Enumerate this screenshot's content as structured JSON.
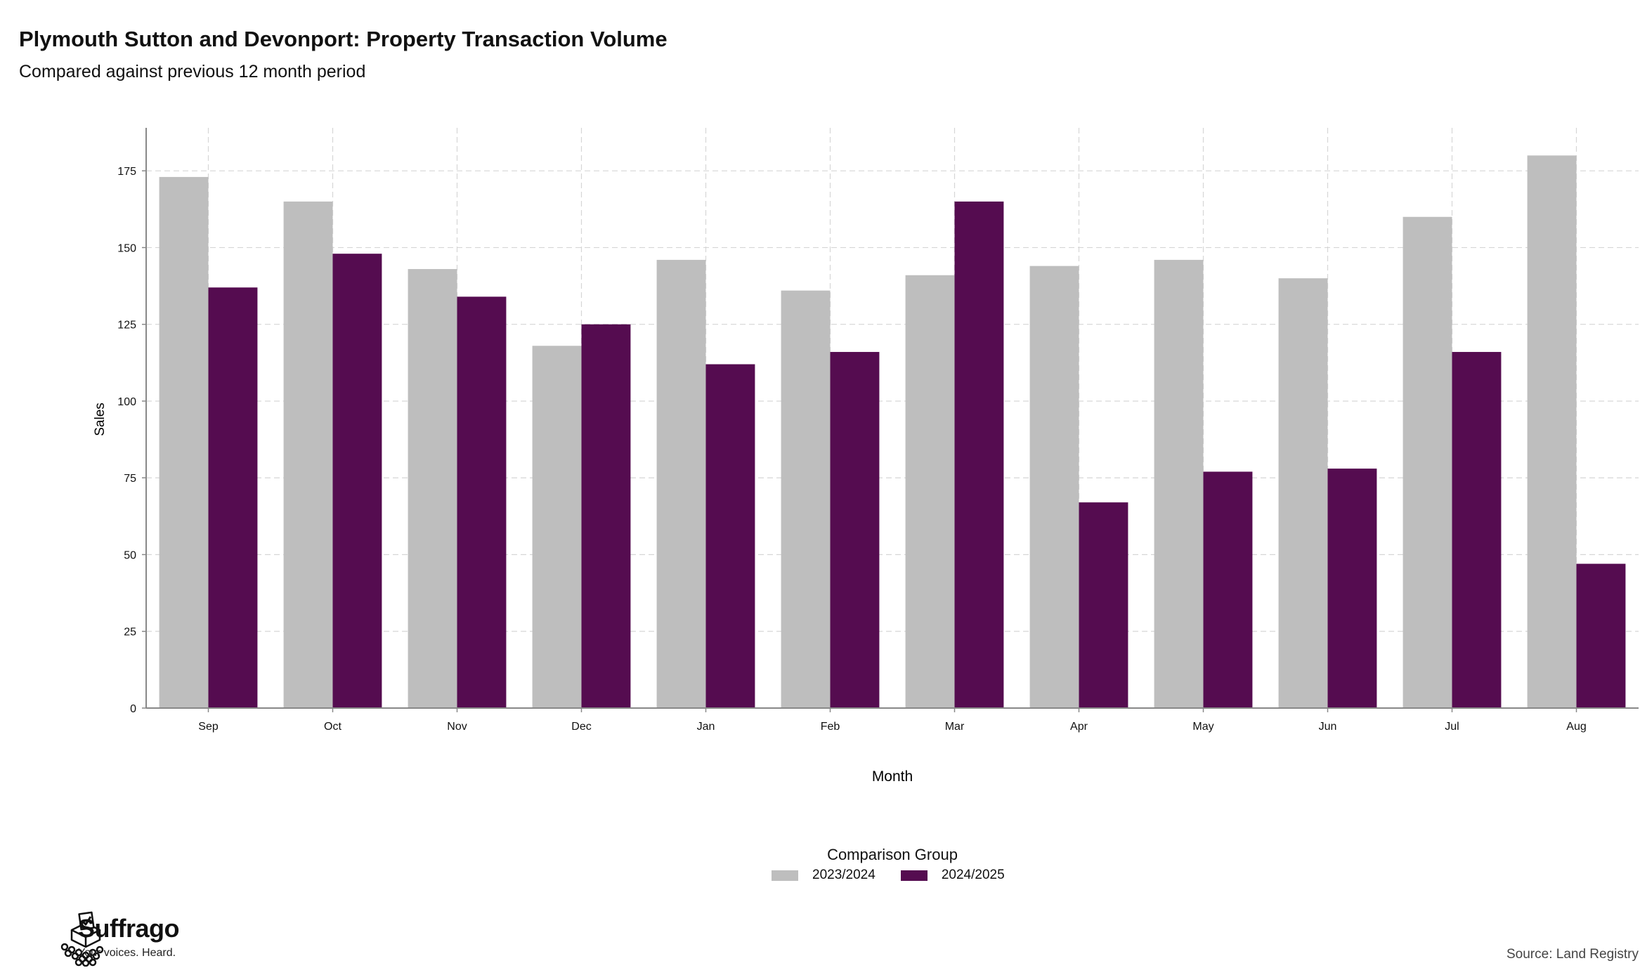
{
  "header": {
    "title": "Plymouth Sutton and Devonport: Property Transaction Volume",
    "subtitle": "Compared against previous 12 month period"
  },
  "chart_data": {
    "type": "bar",
    "title": "Plymouth Sutton and Devonport: Property Transaction Volume",
    "subtitle": "Compared against previous 12 month period",
    "xlabel": "Month",
    "ylabel": "Sales",
    "categories": [
      "Sep",
      "Oct",
      "Nov",
      "Dec",
      "Jan",
      "Feb",
      "Mar",
      "Apr",
      "May",
      "Jun",
      "Jul",
      "Aug"
    ],
    "series": [
      {
        "name": "2023/2024",
        "color": "#bebebe",
        "values": [
          173,
          165,
          143,
          118,
          146,
          136,
          141,
          144,
          146,
          140,
          160,
          180
        ]
      },
      {
        "name": "2024/2025",
        "color": "#550c50",
        "values": [
          137,
          148,
          134,
          125,
          112,
          116,
          165,
          67,
          77,
          78,
          116,
          47
        ]
      }
    ],
    "yticks": [
      0,
      25,
      50,
      75,
      100,
      125,
      150,
      175
    ],
    "ylim": [
      0,
      189
    ],
    "grid": true,
    "legend_title": "Comparison Group",
    "legend_placement": "bottom"
  },
  "footer": {
    "brand": "Suffrago",
    "tagline": "Your voices. Heard.",
    "source": "Source: Land Registry"
  }
}
